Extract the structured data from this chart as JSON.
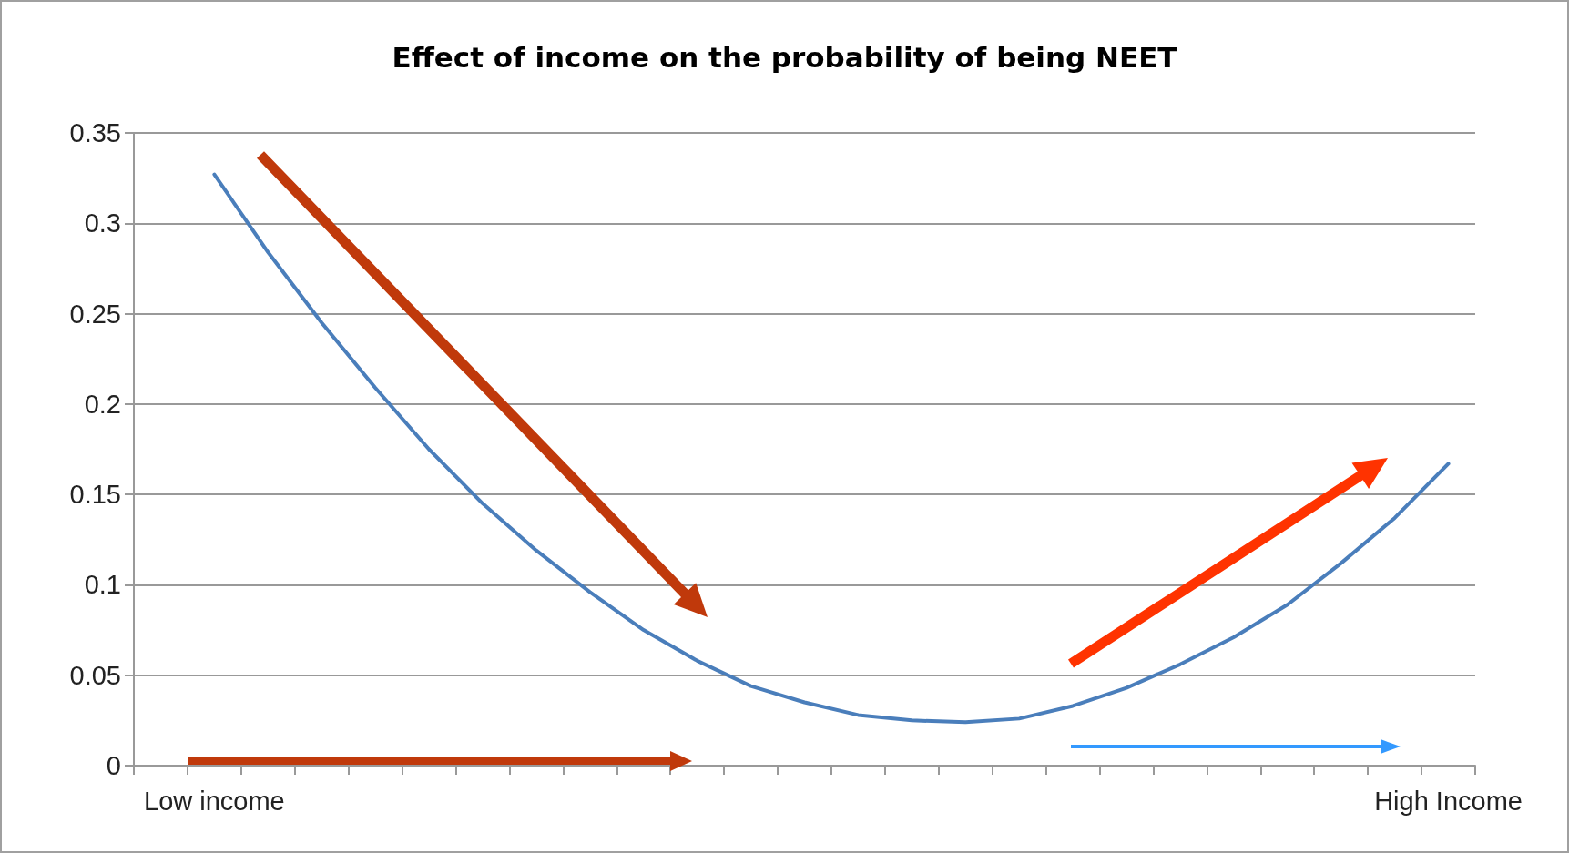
{
  "chart_data": {
    "type": "line",
    "title": "Effect of income on the probability of being NEET",
    "categories": [
      null,
      "Low income",
      null,
      null,
      null,
      null,
      null,
      null,
      null,
      null,
      null,
      null,
      null,
      null,
      null,
      null,
      null,
      null,
      null,
      null,
      null,
      null,
      null,
      null,
      "High Income"
    ],
    "series": [
      {
        "color": "#4a7ebb",
        "values": [
          null,
          0.327,
          0.284,
          0.245,
          0.209,
          0.175,
          0.145,
          0.119,
          0.096,
          0.075,
          0.058,
          0.044,
          0.035,
          0.028,
          0.025,
          0.024,
          0.026,
          0.033,
          0.043,
          0.056,
          0.071,
          0.089,
          0.112,
          0.137,
          0.167
        ]
      }
    ],
    "ylim": [
      0,
      0.35
    ],
    "yticks": [
      0,
      0.05,
      0.1,
      0.15,
      0.2,
      0.25,
      0.3,
      0.35
    ],
    "grid": "y",
    "marker": "none",
    "line_style": "solid"
  }
}
